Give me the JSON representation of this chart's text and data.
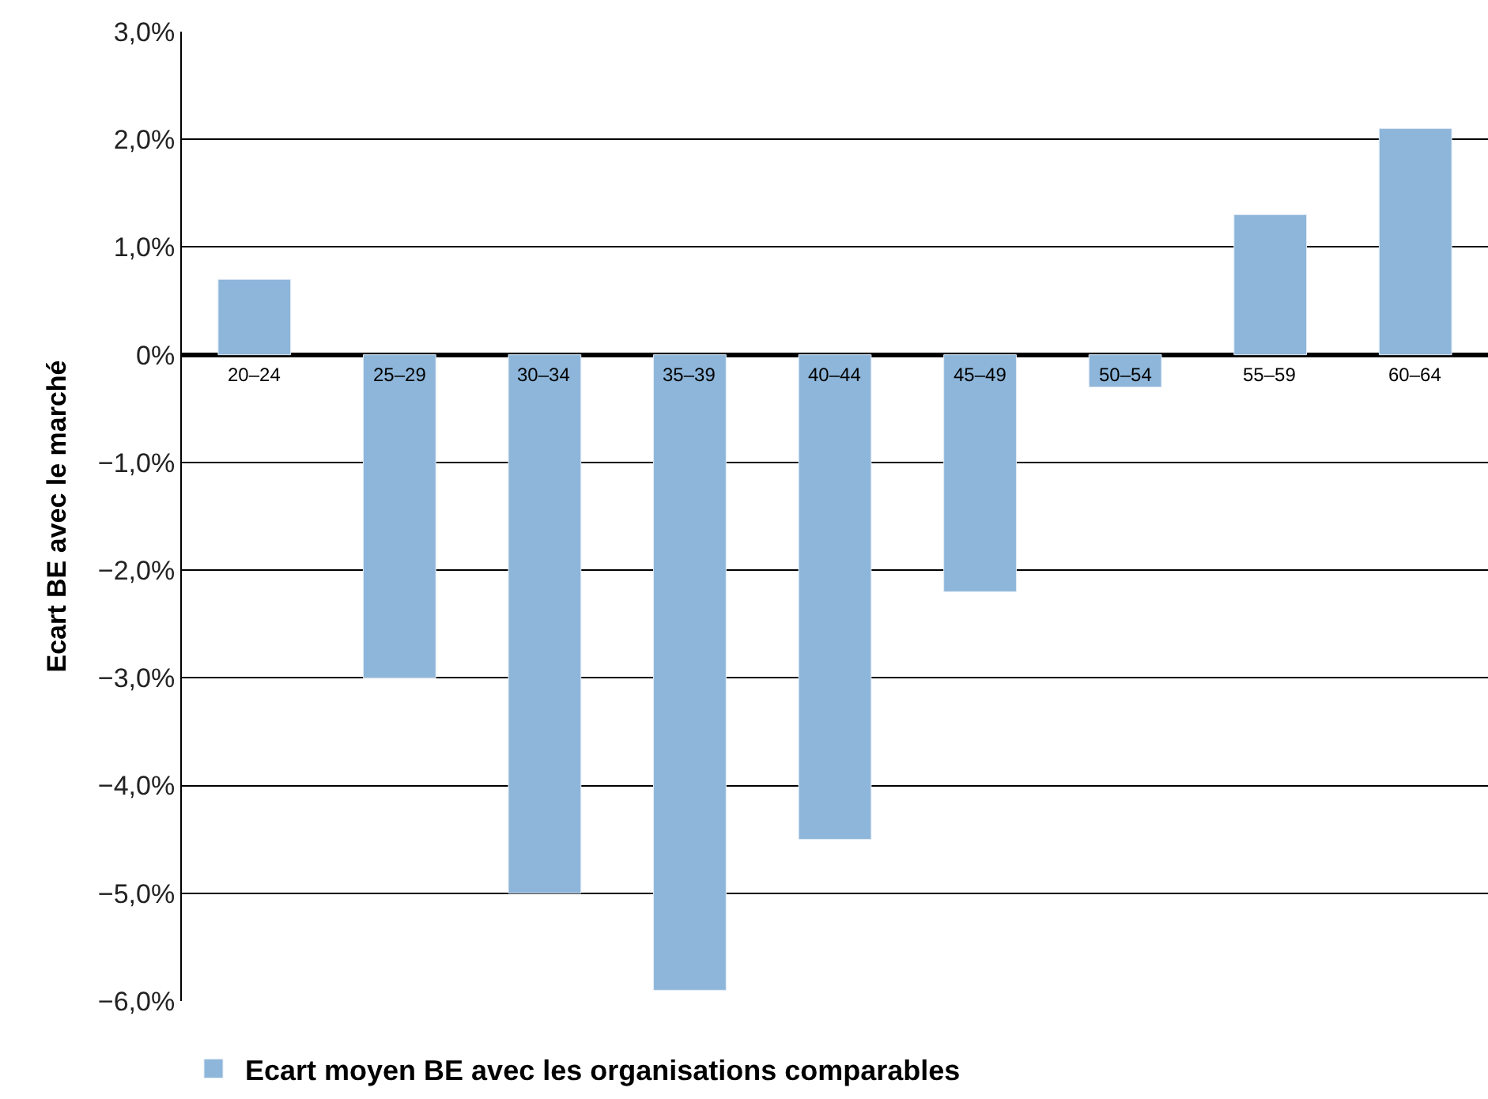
{
  "chart_data": {
    "type": "bar",
    "ylabel": "Ecart BE avec le marché",
    "categories": [
      "20–24",
      "25–29",
      "30–34",
      "35–39",
      "40–44",
      "45–49",
      "50–54",
      "55–59",
      "60–64"
    ],
    "series": [
      {
        "name": "Ecart moyen BE avec les organisations comparables",
        "color": "#8db6da",
        "values": [
          0.7,
          -3.0,
          -5.0,
          -5.9,
          -4.5,
          -2.2,
          -0.3,
          1.3,
          2.1
        ]
      }
    ],
    "ylim": [
      -6,
      3
    ],
    "yticks": [
      {
        "value": 3,
        "label": "3,0%"
      },
      {
        "value": 2,
        "label": "2,0%"
      },
      {
        "value": 1,
        "label": "1,0%"
      },
      {
        "value": 0,
        "label": "0%"
      },
      {
        "value": -1,
        "label": "−1,0%"
      },
      {
        "value": -2,
        "label": "−2,0%"
      },
      {
        "value": -3,
        "label": "−3,0%"
      },
      {
        "value": -4,
        "label": "−4,0%"
      },
      {
        "value": -5,
        "label": "−5,0%"
      },
      {
        "value": -6,
        "label": "−6,0%"
      }
    ],
    "grid": "y",
    "legend": "bottom left"
  }
}
